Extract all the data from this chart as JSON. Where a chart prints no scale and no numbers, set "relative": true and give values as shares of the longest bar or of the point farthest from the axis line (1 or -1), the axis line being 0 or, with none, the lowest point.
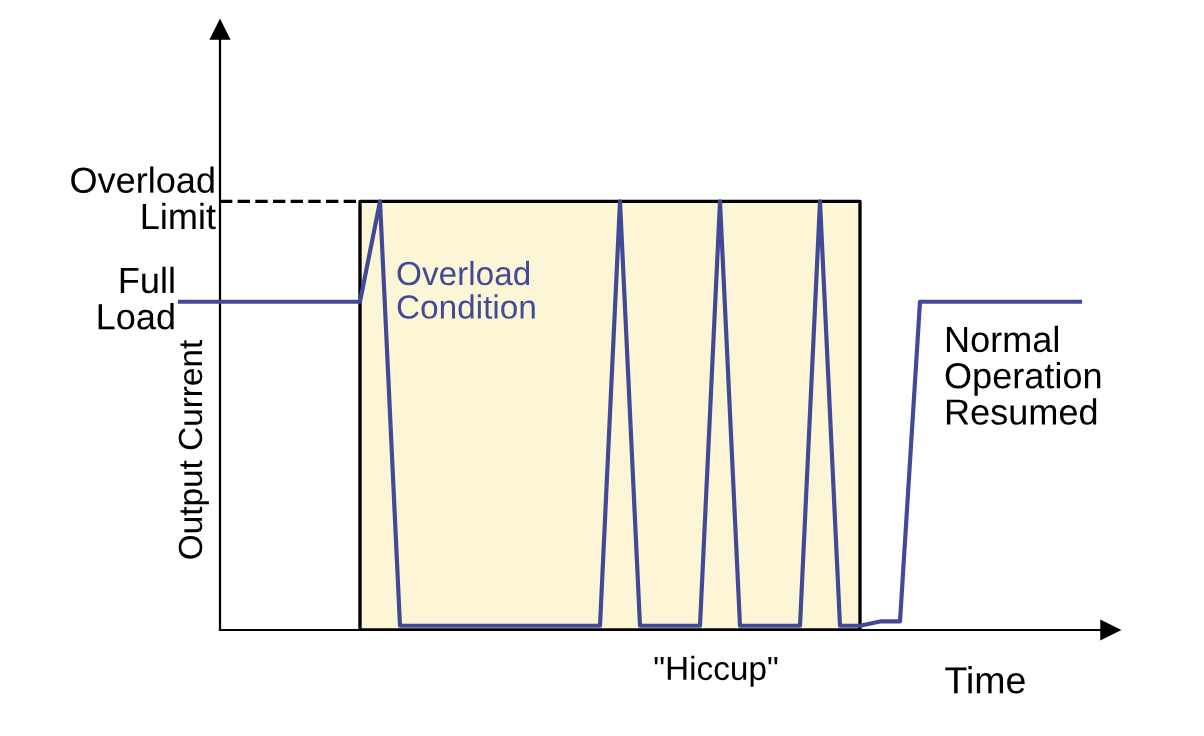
{
  "chart_data": {
    "type": "line",
    "relative": true,
    "xlabel": "Time",
    "ylabel": "Output Current",
    "legend": false,
    "marker": "none",
    "line_style": "solid",
    "categories": [
      null,
      null,
      null,
      null,
      null,
      null,
      null,
      null,
      null,
      null,
      null,
      null,
      null,
      null,
      null,
      null,
      null,
      null,
      null,
      null,
      null,
      null,
      null,
      null,
      null,
      null,
      null,
      null,
      null,
      null,
      null,
      null,
      null,
      null,
      null,
      null,
      null,
      null,
      null,
      null,
      null,
      null,
      null,
      null,
      null,
      null
    ],
    "series": [
      {
        "color": "#414a96",
        "values": [
          0.766,
          0.766,
          0.766,
          0.766,
          0.766,
          0.766,
          0.766,
          0.766,
          0.766,
          0.766,
          1,
          0.01,
          0.01,
          0.01,
          0.01,
          0.01,
          0.01,
          0.01,
          0.01,
          0.01,
          0.01,
          0.01,
          1,
          0.01,
          0.01,
          0.01,
          0.01,
          1,
          0.01,
          0.01,
          0.01,
          0.01,
          1,
          0.01,
          0.01,
          0.02,
          0.02,
          0.766,
          0.766,
          0.766,
          0.766,
          0.766,
          0.766,
          0.766,
          0.766,
          0.766
        ]
      }
    ],
    "annotations": [
      "Overload\nLimit",
      "Full\nLoad",
      "Overload\nCondition",
      "Normal\nOperation\nResumed",
      "\"Hiccup\""
    ]
  }
}
